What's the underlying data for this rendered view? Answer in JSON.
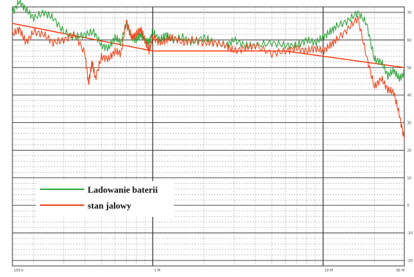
{
  "chart_data": {
    "type": "line",
    "x_scale": "log",
    "x_tick_labels": [
      "150 k",
      "1 M",
      "10 M",
      "30 M"
    ],
    "y_tick_labels": [
      "70",
      "60",
      "50",
      "40",
      "30",
      "20",
      "10",
      "0",
      "-10",
      "-20"
    ],
    "xlim": [
      150000,
      30000000
    ],
    "ylim": [
      -22,
      72
    ],
    "grid": true,
    "legend_placement": "bottom-left",
    "limit_line": {
      "color": "#ff2a00",
      "x": [
        150000,
        1000000,
        6000000,
        30000000
      ],
      "y": [
        66,
        56,
        56,
        50
      ]
    },
    "series": [
      {
        "name": "Ladowanie baterii",
        "color": "#2ea43a",
        "x": [
          150000,
          165000,
          180000,
          200000,
          230000,
          260000,
          300000,
          350000,
          400000,
          450000,
          500000,
          550000,
          600000,
          650000,
          700000,
          750000,
          800000,
          850000,
          900000,
          950000,
          1000000,
          1100000,
          1200000,
          1300000,
          1500000,
          1700000,
          2000000,
          2300000,
          2700000,
          3000000,
          3500000,
          4000000,
          5000000,
          6000000,
          7000000,
          8000000,
          9000000,
          10000000,
          11000000,
          12000000,
          14000000,
          16000000,
          18000000,
          20000000,
          22000000,
          24000000,
          26000000,
          28000000,
          30000000
        ],
        "y": [
          70,
          74,
          71,
          68,
          70,
          68,
          63,
          61,
          62,
          63,
          58,
          57,
          61,
          59,
          66,
          61,
          60,
          62,
          60,
          59,
          63,
          60,
          62,
          60,
          61,
          59,
          61,
          59,
          58,
          60,
          58,
          58,
          59,
          58,
          58,
          60,
          59,
          61,
          63,
          65,
          67,
          70,
          66,
          53,
          52,
          47,
          49,
          46,
          48
        ]
      },
      {
        "name": "stan jalowy",
        "color": "#f0441c",
        "x": [
          150000,
          165000,
          180000,
          200000,
          230000,
          260000,
          300000,
          350000,
          400000,
          420000,
          440000,
          460000,
          500000,
          550000,
          600000,
          650000,
          700000,
          750000,
          800000,
          850000,
          900000,
          950000,
          1000000,
          1100000,
          1200000,
          1300000,
          1500000,
          1700000,
          2000000,
          2300000,
          2700000,
          3000000,
          3500000,
          4000000,
          5000000,
          6000000,
          7000000,
          8000000,
          9000000,
          10000000,
          11000000,
          12000000,
          14000000,
          16000000,
          18000000,
          20000000,
          22000000,
          24000000,
          26000000,
          28000000,
          30000000
        ],
        "y": [
          62,
          64,
          59,
          63,
          62,
          59,
          60,
          62,
          55,
          44,
          52,
          46,
          54,
          53,
          56,
          55,
          67,
          61,
          62,
          64,
          60,
          56,
          61,
          59,
          60,
          61,
          59,
          60,
          59,
          59,
          58,
          56,
          57,
          58,
          55,
          56,
          57,
          56,
          57,
          56,
          58,
          60,
          64,
          68,
          54,
          43,
          46,
          42,
          41,
          33,
          24
        ]
      }
    ]
  }
}
